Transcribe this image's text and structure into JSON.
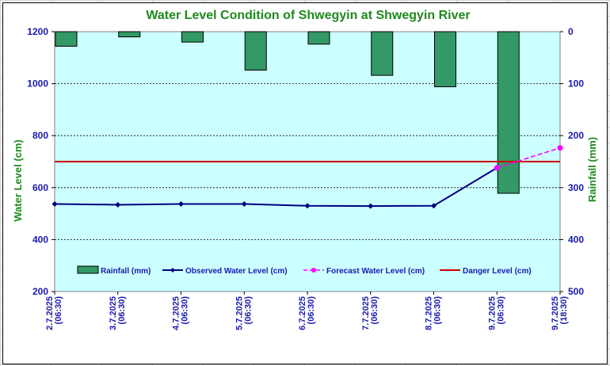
{
  "chart_data": {
    "type": "bar+line",
    "title": "Water Level Condition of Shwegyin at Shwegyin River",
    "ylabel_left": "Water Level (cm)",
    "ylabel_right": "Rainfall (mm)",
    "ylim_left": [
      200,
      1200
    ],
    "ylim_right": [
      0,
      500
    ],
    "right_axis_inverted": true,
    "yticks_left": [
      "1200",
      "1000",
      "800",
      "600",
      "400",
      "200"
    ],
    "yticks_right": [
      "0",
      "100",
      "200",
      "300",
      "400",
      "500"
    ],
    "categories": [
      "2.7.2025 (06:30)",
      "3.7.2025 (06:30)",
      "4.7.2025 (06:30)",
      "5.7.2025 (06:30)",
      "6.7.2025 (06:30)",
      "7.7.2025 (06:30)",
      "8.7.2025 (06:30)",
      "9.7.2025 (06:30)",
      "9.7.2025 (18:30)"
    ],
    "series": [
      {
        "name": "Rainfall (mm)",
        "type": "bar",
        "axis": "right",
        "color": "#339966",
        "values": [
          28,
          10,
          20,
          74,
          24,
          84,
          106,
          311,
          null
        ]
      },
      {
        "name": "Observed Water Level (cm)",
        "type": "line",
        "axis": "left",
        "color": "#000080",
        "values": [
          537,
          534,
          537,
          537,
          530,
          529,
          530,
          676,
          null
        ]
      },
      {
        "name": "Forecast Water Level (cm)",
        "type": "line-dashed",
        "axis": "left",
        "color": "#ff00ff",
        "values": [
          null,
          null,
          null,
          null,
          null,
          null,
          null,
          676,
          753
        ]
      },
      {
        "name": "Danger Level (cm)",
        "type": "hline",
        "axis": "left",
        "color": "#cc0000",
        "value": 700
      }
    ],
    "grid": "horizontal dashed",
    "plot_background": "#ccffff",
    "legend_position": "bottom-inside"
  }
}
